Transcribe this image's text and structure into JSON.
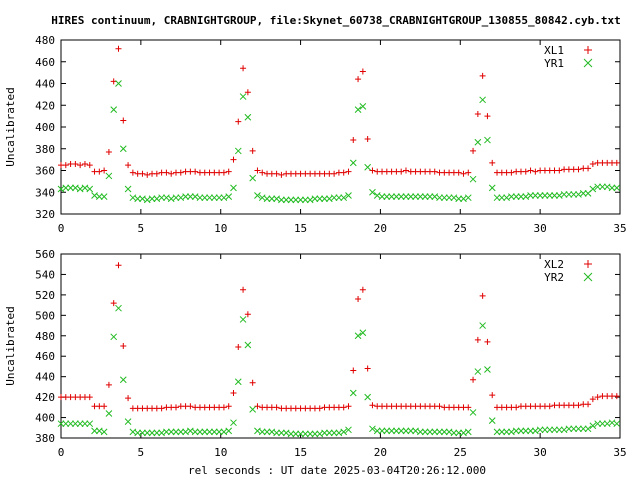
{
  "title": "HIRES continuum, CRABNIGHTGROUP, file:Skynet_60738_CRABNIGHTGROUP_130855_80842.cyb.txt",
  "xlabel": "rel seconds : UT date 2025-03-04T20:26:12.000",
  "colors": {
    "series_a": "#e00000",
    "series_b": "#22bb22",
    "frame": "#000000",
    "grid": "#888888"
  },
  "chart_data": [
    {
      "type": "scatter",
      "ylabel": "Uncalibrated",
      "xlim": [
        0,
        35
      ],
      "ylim": [
        320,
        480
      ],
      "xticks": [
        0,
        5,
        10,
        15,
        20,
        25,
        30,
        35
      ],
      "yticks": [
        320,
        340,
        360,
        380,
        400,
        420,
        440,
        460,
        480
      ],
      "grid": true,
      "legend_position": "top-right",
      "series": [
        {
          "name": "XL1",
          "marker": "plus",
          "x": [
            0.0,
            0.3,
            0.6,
            0.9,
            1.2,
            1.5,
            1.8,
            2.1,
            2.4,
            2.7,
            3.0,
            3.3,
            3.6,
            3.9,
            4.2,
            4.5,
            4.8,
            5.1,
            5.4,
            5.7,
            6.0,
            6.3,
            6.6,
            6.9,
            7.2,
            7.5,
            7.8,
            8.1,
            8.4,
            8.7,
            9.0,
            9.3,
            9.6,
            9.9,
            10.2,
            10.5,
            10.8,
            11.1,
            11.4,
            11.7,
            12.0,
            12.3,
            12.6,
            12.9,
            13.2,
            13.5,
            13.8,
            14.1,
            14.4,
            14.7,
            15.0,
            15.3,
            15.6,
            15.9,
            16.2,
            16.5,
            16.8,
            17.1,
            17.4,
            17.7,
            18.0,
            18.3,
            18.6,
            18.9,
            19.2,
            19.5,
            19.8,
            20.1,
            20.4,
            20.7,
            21.0,
            21.3,
            21.6,
            21.9,
            22.2,
            22.5,
            22.8,
            23.1,
            23.4,
            23.7,
            24.0,
            24.3,
            24.6,
            24.9,
            25.2,
            25.5,
            25.8,
            26.1,
            26.4,
            26.7,
            27.0,
            27.3,
            27.6,
            27.9,
            28.2,
            28.5,
            28.8,
            29.1,
            29.4,
            29.7,
            30.0,
            30.3,
            30.6,
            30.9,
            31.2,
            31.5,
            31.8,
            32.1,
            32.4,
            32.7,
            33.0,
            33.3,
            33.6,
            33.9,
            34.2,
            34.5,
            34.8
          ],
          "y": [
            365,
            365,
            366,
            366,
            365,
            366,
            365,
            359,
            359,
            360,
            377,
            442,
            472,
            406,
            365,
            358,
            357,
            357,
            356,
            357,
            357,
            358,
            358,
            357,
            358,
            358,
            359,
            359,
            359,
            358,
            358,
            358,
            358,
            358,
            358,
            359,
            370,
            405,
            454,
            432,
            378,
            360,
            358,
            357,
            357,
            357,
            356,
            357,
            357,
            357,
            357,
            357,
            357,
            357,
            357,
            357,
            357,
            357,
            358,
            358,
            359,
            388,
            444,
            451,
            389,
            360,
            359,
            359,
            359,
            359,
            359,
            359,
            360,
            359,
            359,
            359,
            359,
            359,
            359,
            358,
            358,
            358,
            358,
            358,
            357,
            358,
            378,
            412,
            447,
            410,
            367,
            358,
            358,
            358,
            358,
            359,
            359,
            359,
            360,
            359,
            360,
            360,
            360,
            360,
            360,
            361,
            361,
            361,
            361,
            362,
            362,
            366,
            367,
            367,
            367,
            367,
            367
          ]
        },
        {
          "name": "YR1",
          "marker": "cross",
          "x": [
            0.0,
            0.3,
            0.6,
            0.9,
            1.2,
            1.5,
            1.8,
            2.1,
            2.4,
            2.7,
            3.0,
            3.3,
            3.6,
            3.9,
            4.2,
            4.5,
            4.8,
            5.1,
            5.4,
            5.7,
            6.0,
            6.3,
            6.6,
            6.9,
            7.2,
            7.5,
            7.8,
            8.1,
            8.4,
            8.7,
            9.0,
            9.3,
            9.6,
            9.9,
            10.2,
            10.5,
            10.8,
            11.1,
            11.4,
            11.7,
            12.0,
            12.3,
            12.6,
            12.9,
            13.2,
            13.5,
            13.8,
            14.1,
            14.4,
            14.7,
            15.0,
            15.3,
            15.6,
            15.9,
            16.2,
            16.5,
            16.8,
            17.1,
            17.4,
            17.7,
            18.0,
            18.3,
            18.6,
            18.9,
            19.2,
            19.5,
            19.8,
            20.1,
            20.4,
            20.7,
            21.0,
            21.3,
            21.6,
            21.9,
            22.2,
            22.5,
            22.8,
            23.1,
            23.4,
            23.7,
            24.0,
            24.3,
            24.6,
            24.9,
            25.2,
            25.5,
            25.8,
            26.1,
            26.4,
            26.7,
            27.0,
            27.3,
            27.6,
            27.9,
            28.2,
            28.5,
            28.8,
            29.1,
            29.4,
            29.7,
            30.0,
            30.3,
            30.6,
            30.9,
            31.2,
            31.5,
            31.8,
            32.1,
            32.4,
            32.7,
            33.0,
            33.3,
            33.6,
            33.9,
            34.2,
            34.5,
            34.8
          ],
          "y": [
            343,
            344,
            344,
            344,
            343,
            344,
            343,
            337,
            336,
            336,
            355,
            416,
            440,
            380,
            343,
            335,
            334,
            334,
            333,
            334,
            334,
            335,
            335,
            334,
            335,
            335,
            336,
            336,
            336,
            335,
            335,
            335,
            335,
            335,
            335,
            336,
            344,
            378,
            428,
            409,
            353,
            337,
            335,
            334,
            334,
            334,
            333,
            333,
            333,
            333,
            333,
            333,
            333,
            334,
            334,
            334,
            334,
            335,
            335,
            335,
            337,
            367,
            416,
            419,
            363,
            340,
            337,
            336,
            336,
            336,
            336,
            336,
            336,
            336,
            336,
            336,
            336,
            336,
            336,
            335,
            335,
            335,
            335,
            334,
            334,
            335,
            352,
            386,
            425,
            388,
            344,
            335,
            335,
            335,
            336,
            336,
            336,
            336,
            337,
            337,
            337,
            337,
            337,
            337,
            337,
            338,
            338,
            338,
            338,
            339,
            339,
            343,
            345,
            345,
            345,
            344,
            344
          ]
        }
      ]
    },
    {
      "type": "scatter",
      "ylabel": "Uncalibrated",
      "xlim": [
        0,
        35
      ],
      "ylim": [
        380,
        560
      ],
      "xticks": [
        0,
        5,
        10,
        15,
        20,
        25,
        30,
        35
      ],
      "yticks": [
        380,
        400,
        420,
        440,
        460,
        480,
        500,
        520,
        540,
        560
      ],
      "grid": true,
      "legend_position": "top-right",
      "series": [
        {
          "name": "XL2",
          "marker": "plus",
          "x": [
            0.0,
            0.3,
            0.6,
            0.9,
            1.2,
            1.5,
            1.8,
            2.1,
            2.4,
            2.7,
            3.0,
            3.3,
            3.6,
            3.9,
            4.2,
            4.5,
            4.8,
            5.1,
            5.4,
            5.7,
            6.0,
            6.3,
            6.6,
            6.9,
            7.2,
            7.5,
            7.8,
            8.1,
            8.4,
            8.7,
            9.0,
            9.3,
            9.6,
            9.9,
            10.2,
            10.5,
            10.8,
            11.1,
            11.4,
            11.7,
            12.0,
            12.3,
            12.6,
            12.9,
            13.2,
            13.5,
            13.8,
            14.1,
            14.4,
            14.7,
            15.0,
            15.3,
            15.6,
            15.9,
            16.2,
            16.5,
            16.8,
            17.1,
            17.4,
            17.7,
            18.0,
            18.3,
            18.6,
            18.9,
            19.2,
            19.5,
            19.8,
            20.1,
            20.4,
            20.7,
            21.0,
            21.3,
            21.6,
            21.9,
            22.2,
            22.5,
            22.8,
            23.1,
            23.4,
            23.7,
            24.0,
            24.3,
            24.6,
            24.9,
            25.2,
            25.5,
            25.8,
            26.1,
            26.4,
            26.7,
            27.0,
            27.3,
            27.6,
            27.9,
            28.2,
            28.5,
            28.8,
            29.1,
            29.4,
            29.7,
            30.0,
            30.3,
            30.6,
            30.9,
            31.2,
            31.5,
            31.8,
            32.1,
            32.4,
            32.7,
            33.0,
            33.3,
            33.6,
            33.9,
            34.2,
            34.5,
            34.8
          ],
          "y": [
            420,
            420,
            420,
            420,
            420,
            420,
            420,
            411,
            411,
            411,
            432,
            512,
            549,
            470,
            419,
            409,
            409,
            409,
            409,
            409,
            409,
            409,
            410,
            410,
            410,
            411,
            411,
            411,
            410,
            410,
            410,
            410,
            410,
            410,
            410,
            411,
            424,
            469,
            525,
            501,
            434,
            411,
            410,
            410,
            410,
            410,
            409,
            409,
            409,
            409,
            409,
            409,
            409,
            409,
            409,
            410,
            410,
            410,
            410,
            410,
            411,
            446,
            516,
            525,
            448,
            412,
            411,
            411,
            411,
            411,
            411,
            411,
            411,
            411,
            411,
            411,
            411,
            411,
            411,
            411,
            410,
            410,
            410,
            410,
            410,
            410,
            437,
            476,
            519,
            474,
            422,
            410,
            410,
            410,
            410,
            410,
            411,
            411,
            411,
            411,
            411,
            411,
            411,
            412,
            412,
            412,
            412,
            412,
            412,
            413,
            413,
            418,
            420,
            421,
            421,
            421,
            421
          ]
        },
        {
          "name": "YR2",
          "marker": "cross",
          "x": [
            0.0,
            0.3,
            0.6,
            0.9,
            1.2,
            1.5,
            1.8,
            2.1,
            2.4,
            2.7,
            3.0,
            3.3,
            3.6,
            3.9,
            4.2,
            4.5,
            4.8,
            5.1,
            5.4,
            5.7,
            6.0,
            6.3,
            6.6,
            6.9,
            7.2,
            7.5,
            7.8,
            8.1,
            8.4,
            8.7,
            9.0,
            9.3,
            9.6,
            9.9,
            10.2,
            10.5,
            10.8,
            11.1,
            11.4,
            11.7,
            12.0,
            12.3,
            12.6,
            12.9,
            13.2,
            13.5,
            13.8,
            14.1,
            14.4,
            14.7,
            15.0,
            15.3,
            15.6,
            15.9,
            16.2,
            16.5,
            16.8,
            17.1,
            17.4,
            17.7,
            18.0,
            18.3,
            18.6,
            18.9,
            19.2,
            19.5,
            19.8,
            20.1,
            20.4,
            20.7,
            21.0,
            21.3,
            21.6,
            21.9,
            22.2,
            22.5,
            22.8,
            23.1,
            23.4,
            23.7,
            24.0,
            24.3,
            24.6,
            24.9,
            25.2,
            25.5,
            25.8,
            26.1,
            26.4,
            26.7,
            27.0,
            27.3,
            27.6,
            27.9,
            28.2,
            28.5,
            28.8,
            29.1,
            29.4,
            29.7,
            30.0,
            30.3,
            30.6,
            30.9,
            31.2,
            31.5,
            31.8,
            32.1,
            32.4,
            32.7,
            33.0,
            33.3,
            33.6,
            33.9,
            34.2,
            34.5,
            34.8
          ],
          "y": [
            394,
            394,
            394,
            394,
            394,
            394,
            394,
            387,
            387,
            386,
            404,
            479,
            507,
            437,
            396,
            386,
            385,
            385,
            385,
            385,
            385,
            385,
            386,
            386,
            386,
            386,
            386,
            387,
            386,
            386,
            386,
            386,
            386,
            386,
            386,
            387,
            395,
            435,
            496,
            471,
            408,
            387,
            386,
            386,
            386,
            385,
            385,
            385,
            384,
            384,
            384,
            384,
            384,
            384,
            384,
            385,
            385,
            385,
            385,
            386,
            388,
            424,
            480,
            483,
            420,
            389,
            387,
            387,
            387,
            387,
            387,
            387,
            387,
            387,
            387,
            386,
            386,
            386,
            386,
            386,
            386,
            386,
            385,
            385,
            385,
            386,
            405,
            445,
            490,
            447,
            397,
            386,
            386,
            386,
            386,
            387,
            387,
            387,
            387,
            387,
            388,
            388,
            388,
            388,
            388,
            388,
            389,
            389,
            389,
            389,
            389,
            392,
            394,
            394,
            394,
            395,
            394
          ]
        }
      ]
    }
  ]
}
